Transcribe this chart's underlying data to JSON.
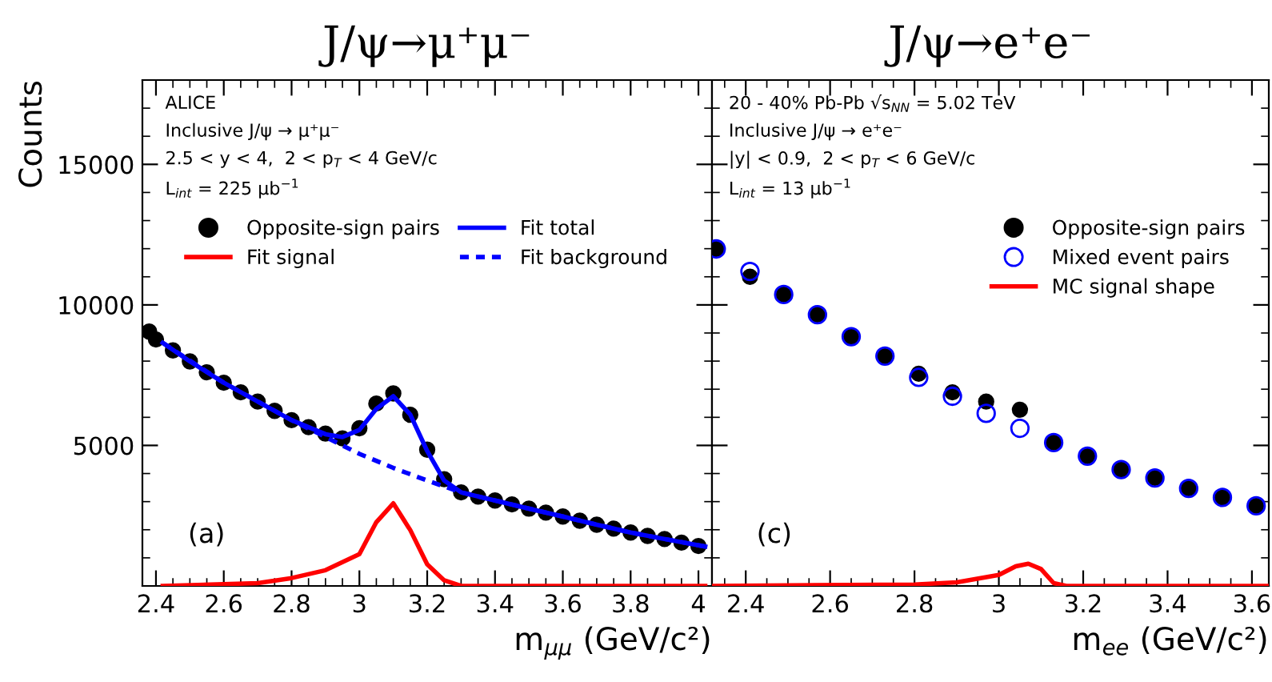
{
  "chart_data": [
    {
      "type": "scatter",
      "title": "J/ψ→μ⁺μ⁻",
      "xlabel": "m$_{μμ}$ (GeV/c²)",
      "ylabel": "Counts",
      "xlim": [
        2.36,
        4.04
      ],
      "xticks": [
        2.4,
        2.6,
        2.8,
        3,
        3.2,
        3.4,
        3.6,
        3.8,
        4
      ],
      "ylim": [
        0,
        18000
      ],
      "yticks": [
        5000,
        10000,
        15000
      ],
      "grid": false,
      "legend": "top",
      "annotations": [
        "ALICE",
        "Inclusive J/ψ → μ⁺μ⁻",
        "2.5 < y < 4,  2 < p$_{T}$ < 4 GeV/c",
        "L$_{int}$ = 225 μb$^{−1}$",
        "(a)"
      ],
      "series": [
        {
          "name": "Opposite-sign pairs",
          "marker": "circle",
          "color": "#000000",
          "x": [
            2.38,
            2.4,
            2.45,
            2.5,
            2.55,
            2.6,
            2.65,
            2.7,
            2.75,
            2.8,
            2.85,
            2.9,
            2.95,
            3.0,
            3.05,
            3.1,
            3.15,
            3.2,
            3.25,
            3.3,
            3.35,
            3.4,
            3.45,
            3.5,
            3.55,
            3.6,
            3.65,
            3.7,
            3.75,
            3.8,
            3.85,
            3.9,
            3.95,
            4.0
          ],
          "values": [
            9050,
            8770,
            8380,
            7990,
            7600,
            7230,
            6890,
            6560,
            6230,
            5900,
            5650,
            5420,
            5250,
            5610,
            6490,
            6850,
            6090,
            4850,
            3800,
            3330,
            3180,
            3040,
            2900,
            2750,
            2610,
            2470,
            2320,
            2180,
            2040,
            1900,
            1780,
            1670,
            1540,
            1420
          ]
        },
        {
          "name": "Fit signal",
          "type": "line",
          "marker": "none",
          "color": "#ff0000",
          "line_style": "solid",
          "x": [
            2.42,
            2.7,
            2.8,
            2.9,
            3.0,
            3.05,
            3.1,
            3.15,
            3.2,
            3.25,
            3.3,
            4.02
          ],
          "values": [
            0,
            100,
            280,
            560,
            1130,
            2270,
            2940,
            1990,
            770,
            200,
            0,
            0
          ]
        },
        {
          "name": "Fit total",
          "type": "line",
          "marker": "none",
          "color": "#0000ff",
          "line_style": "solid",
          "x": [
            2.42,
            2.5,
            2.6,
            2.7,
            2.8,
            2.9,
            2.95,
            3.0,
            3.05,
            3.1,
            3.15,
            3.2,
            3.25,
            3.3,
            3.4,
            3.5,
            3.6,
            3.7,
            3.8,
            3.9,
            4.02
          ],
          "values": [
            8650,
            7990,
            7230,
            6560,
            5900,
            5400,
            5300,
            5550,
            6300,
            6750,
            6100,
            4800,
            3750,
            3330,
            3040,
            2750,
            2470,
            2180,
            1900,
            1670,
            1400
          ]
        },
        {
          "name": "Fit background",
          "type": "line",
          "marker": "none",
          "color": "#0000ff",
          "line_style": "dotted",
          "x": [
            2.42,
            2.6,
            2.8,
            2.9,
            3.0,
            3.1,
            3.2,
            3.3,
            3.4,
            3.6,
            3.8,
            4.02
          ],
          "values": [
            8650,
            7230,
            5900,
            5300,
            4700,
            4200,
            3750,
            3330,
            3040,
            2470,
            1900,
            1400
          ]
        }
      ]
    },
    {
      "type": "scatter",
      "title": "J/ψ→e⁺e⁻",
      "xlabel": "m$_{ee}$ (GeV/c²)",
      "xlim": [
        2.32,
        3.64
      ],
      "xticks": [
        2.4,
        2.6,
        2.8,
        3,
        3.2,
        3.4,
        3.6
      ],
      "ylim": [
        0,
        18000
      ],
      "yticks": [
        5000,
        10000,
        15000
      ],
      "tick_labels": "x",
      "grid": false,
      "legend": "top right",
      "annotations": [
        "20 - 40% Pb-Pb √s$_{NN}$ = 5.02 TeV",
        "Inclusive J/ψ → e⁺e⁻",
        "|y| < 0.9,  2 < p$_{T}$ < 6 GeV/c",
        "L$_{int}$ = 13 μb$^{−1}$",
        "(c)"
      ],
      "series": [
        {
          "name": "Opposite-sign pairs",
          "marker": "circle",
          "color": "#000000",
          "x": [
            2.33,
            2.41,
            2.49,
            2.57,
            2.65,
            2.73,
            2.81,
            2.89,
            2.97,
            3.05,
            3.13,
            3.21,
            3.29,
            3.37,
            3.45,
            3.53,
            3.61
          ],
          "values": [
            11990,
            11000,
            10370,
            9650,
            8870,
            8180,
            7550,
            6890,
            6560,
            6270,
            5100,
            4620,
            4140,
            3840,
            3470,
            3150,
            2850
          ]
        },
        {
          "name": "Mixed event pairs",
          "marker": "circle",
          "color": "#0000ff",
          "x": [
            2.33,
            2.41,
            2.49,
            2.57,
            2.65,
            2.73,
            2.81,
            2.89,
            2.97,
            3.05,
            3.13,
            3.21,
            3.29,
            3.37,
            3.45,
            3.53,
            3.61
          ],
          "values": [
            11990,
            11190,
            10370,
            9650,
            8870,
            8180,
            7420,
            6750,
            6140,
            5610,
            5100,
            4620,
            4140,
            3840,
            3470,
            3150,
            2850
          ]
        },
        {
          "name": "MC signal shape",
          "type": "line",
          "marker": "none",
          "color": "#ff0000",
          "line_style": "solid",
          "x": [
            2.32,
            2.8,
            2.9,
            3.0,
            3.04,
            3.07,
            3.1,
            3.13,
            3.16,
            3.64
          ],
          "values": [
            0,
            50,
            130,
            390,
            700,
            790,
            600,
            100,
            0,
            0
          ]
        }
      ]
    }
  ]
}
